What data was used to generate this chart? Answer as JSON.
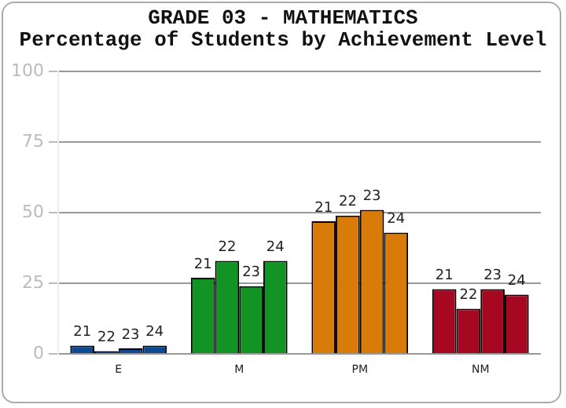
{
  "chart_data": {
    "type": "bar",
    "title": "GRADE 03 - MATHEMATICS",
    "subtitle": "Percentage of Students by Achievement Level",
    "categories": [
      "E",
      "M",
      "PM",
      "NM"
    ],
    "series": [
      {
        "name": "21",
        "colors": [
          "#0e4a94",
          "#119424",
          "#d87b08",
          "#a50820"
        ],
        "values": [
          3,
          27,
          47,
          23
        ]
      },
      {
        "name": "22",
        "colors": [
          "#0e4a94",
          "#119424",
          "#d87b08",
          "#a50820"
        ],
        "values": [
          1,
          33,
          49,
          16
        ]
      },
      {
        "name": "23",
        "colors": [
          "#0e4a94",
          "#119424",
          "#d87b08",
          "#a50820"
        ],
        "values": [
          2,
          24,
          51,
          23
        ]
      },
      {
        "name": "24",
        "colors": [
          "#0e4a94",
          "#119424",
          "#d87b08",
          "#a50820"
        ],
        "values": [
          3,
          33,
          43,
          21
        ]
      }
    ],
    "ylim": [
      0,
      100
    ],
    "yticks": [
      0,
      25,
      50,
      75,
      100
    ],
    "grid": "y",
    "legend": false
  }
}
